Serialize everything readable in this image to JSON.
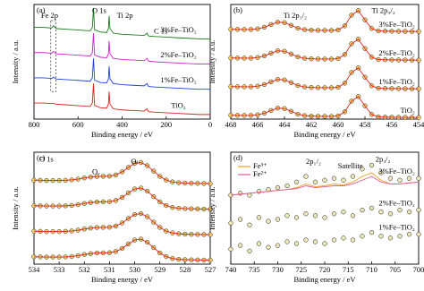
{
  "chart_data": [
    {
      "type": "line",
      "panel": "(a)",
      "xlabel": "Binding energy / eV",
      "ylabel": "Intensity / a.u.",
      "xlim": [
        800,
        0
      ],
      "xticks": [
        800,
        600,
        400,
        200,
        0
      ],
      "ylim": [
        0,
        100
      ],
      "markers": false,
      "lines": true,
      "annotations": [
        "Fe 2p",
        "O 1s",
        "Ti 2p",
        "C 1s"
      ],
      "x": [
        800,
        760,
        720,
        711,
        700,
        660,
        620,
        580,
        545,
        535,
        530,
        525,
        500,
        470,
        462,
        459,
        455,
        440,
        400,
        350,
        300,
        286,
        284,
        280,
        250,
        200,
        150,
        100,
        50,
        0
      ],
      "series": [
        {
          "name": "3%Fe–TiO₂",
          "color": "#1a7a1a",
          "values": [
            80,
            80,
            79.5,
            81.5,
            79,
            78.5,
            78,
            77.5,
            77,
            80,
            97,
            78,
            76,
            75.5,
            79,
            90,
            79,
            75,
            74,
            73.5,
            73,
            75,
            74,
            72.5,
            72,
            71.5,
            71,
            70.5,
            70,
            70
          ]
        },
        {
          "name": "2%Fe–TiO₂",
          "color": "#d020d0",
          "values": [
            58,
            58,
            57.5,
            59,
            57,
            56.5,
            56,
            55.5,
            55,
            58,
            75,
            56,
            54,
            53.5,
            57,
            68,
            57,
            53,
            52,
            51.5,
            51,
            53,
            52,
            50.5,
            50,
            49.5,
            49,
            48.5,
            48,
            48
          ]
        },
        {
          "name": "1%Fe–TiO₂",
          "color": "#2040e0",
          "values": [
            36,
            36,
            35.5,
            36.5,
            35,
            34.5,
            34,
            33.5,
            33,
            36,
            53,
            34,
            32,
            31.5,
            35,
            46,
            35,
            31,
            30,
            29.5,
            29,
            31,
            30,
            28.5,
            28,
            27.5,
            27,
            26.5,
            26,
            26
          ]
        },
        {
          "name": "TiO₂",
          "color": "#e02020",
          "values": [
            14,
            14,
            13.5,
            13.8,
            13,
            12.5,
            12,
            11.5,
            11,
            14,
            31,
            12,
            10,
            9.5,
            13,
            24,
            13,
            9,
            8,
            7.5,
            7,
            9,
            8,
            6.5,
            6,
            5.5,
            5,
            4.5,
            4,
            4
          ]
        }
      ]
    },
    {
      "type": "line",
      "panel": "(b)",
      "xlabel": "Binding energy / eV",
      "ylabel": "Intensity / a.u.",
      "xlim": [
        468,
        454
      ],
      "xticks": [
        468,
        466,
        464,
        462,
        460,
        458,
        456,
        454
      ],
      "ylim": [
        0,
        72
      ],
      "markers": true,
      "lines": true,
      "marker_fill": "#f3d36a",
      "annotations": [
        "Ti 2p₁/₂",
        "Ti 2p₃/₂"
      ],
      "x": [
        468,
        467.5,
        467,
        466.5,
        466,
        465.5,
        465,
        464.5,
        464,
        463.5,
        463,
        462.5,
        462,
        461.5,
        461,
        460.5,
        460,
        459.5,
        459,
        458.5,
        458,
        457.5,
        457,
        456.5,
        456,
        455.5,
        455,
        454.5,
        454
      ],
      "series": [
        {
          "name": "3%Fe–TiO₂",
          "color": "#e02020",
          "values": [
            56.4,
            56.35,
            56.3,
            56.3,
            56.7,
            57.7,
            59.4,
            60.9,
            60.6,
            58.9,
            57.1,
            56.2,
            55.9,
            55.75,
            55.7,
            55.7,
            56,
            58.6,
            65.3,
            68.2,
            62.3,
            56.9,
            55.4,
            55.25,
            55.2,
            55.15,
            55.1,
            55.05,
            55
          ]
        },
        {
          "name": "2%Fe–TiO₂",
          "color": "#e02020",
          "values": [
            38.4,
            38.35,
            38.3,
            38.3,
            38.7,
            39.7,
            41.4,
            42.9,
            42.6,
            40.9,
            39.1,
            38.2,
            37.9,
            37.75,
            37.7,
            37.7,
            38,
            40.6,
            47.3,
            50.2,
            44.3,
            38.9,
            37.4,
            37.25,
            37.2,
            37.15,
            37.1,
            37.05,
            37
          ]
        },
        {
          "name": "1%Fe–TiO₂",
          "color": "#e02020",
          "values": [
            20.4,
            20.35,
            20.3,
            20.3,
            20.7,
            21.7,
            23.4,
            24.9,
            24.6,
            22.9,
            21.1,
            20.2,
            19.9,
            19.75,
            19.7,
            19.7,
            20,
            22.6,
            29.3,
            32.2,
            26.3,
            20.9,
            19.4,
            19.25,
            19.2,
            19.15,
            19.1,
            19.05,
            19
          ]
        },
        {
          "name": "TiO₂",
          "color": "#e02020",
          "values": [
            2.4,
            2.35,
            2.3,
            2.3,
            2.7,
            3.7,
            5.4,
            6.9,
            6.6,
            4.9,
            3.1,
            2.2,
            1.9,
            1.75,
            1.7,
            1.7,
            2.0,
            4.6,
            11.3,
            14.2,
            8.3,
            2.9,
            1.4,
            1.25,
            1.2,
            1.15,
            1.1,
            1.05,
            1.0
          ]
        }
      ]
    },
    {
      "type": "line",
      "panel": "(c)",
      "xlabel": "Binding energy / eV",
      "ylabel": "Intensity / a.u.",
      "xlim": [
        534,
        527
      ],
      "xticks": [
        534,
        533,
        532,
        531,
        530,
        529,
        528,
        527
      ],
      "ylim": [
        -1,
        56
      ],
      "markers": true,
      "lines": true,
      "marker_fill": "#f3d36a",
      "annotations": [
        "O 1s",
        "Oᵥ",
        "Oₗ"
      ],
      "x": [
        534,
        533.75,
        533.5,
        533.25,
        533,
        532.75,
        532.5,
        532.25,
        532,
        531.75,
        531.5,
        531.25,
        531,
        530.75,
        530.5,
        530.25,
        530,
        529.75,
        529.5,
        529.25,
        529,
        528.75,
        528.5,
        528.25,
        528,
        527.75,
        527.5,
        527.25,
        527
      ],
      "series": [
        {
          "color": "#e02020",
          "values": [
            41.75,
            41.7,
            41.6,
            41.6,
            41.6,
            41.7,
            41.9,
            42.3,
            42.9,
            43.35,
            43.66,
            43.73,
            43.82,
            44.43,
            45.99,
            48.28,
            50.28,
            50.74,
            49.18,
            46.4,
            43.7,
            41.85,
            40.88,
            40.45,
            40.28,
            40.19,
            40.13,
            40.06,
            40
          ]
        },
        {
          "color": "#e02020",
          "values": [
            28.75,
            28.7,
            28.6,
            28.6,
            28.6,
            28.7,
            28.9,
            29.3,
            29.9,
            30.35,
            30.66,
            30.73,
            30.82,
            31.43,
            32.99,
            35.28,
            37.28,
            37.74,
            36.18,
            33.4,
            30.7,
            28.85,
            27.88,
            27.45,
            27.28,
            27.19,
            27.13,
            27.06,
            27
          ]
        },
        {
          "color": "#e02020",
          "values": [
            15.75,
            15.7,
            15.6,
            15.6,
            15.6,
            15.7,
            15.9,
            16.3,
            16.9,
            17.35,
            17.66,
            17.73,
            17.82,
            18.43,
            19.99,
            22.28,
            24.28,
            24.74,
            23.18,
            20.4,
            17.7,
            15.85,
            14.88,
            14.45,
            14.28,
            14.19,
            14.13,
            14.06,
            14
          ]
        },
        {
          "color": "#e02020",
          "values": [
            2.75,
            2.7,
            2.6,
            2.6,
            2.6,
            2.7,
            2.9,
            3.3,
            3.9,
            4.35,
            4.66,
            4.73,
            4.82,
            5.43,
            6.99,
            9.28,
            11.28,
            11.74,
            10.18,
            7.4,
            4.7,
            2.85,
            1.88,
            1.45,
            1.28,
            1.19,
            1.13,
            1.06,
            1.0
          ]
        }
      ]
    },
    {
      "type": "line",
      "panel": "(d)",
      "xlabel": "Binding energy / eV",
      "ylabel": "Intensity / a.u.",
      "xlim": [
        740,
        700
      ],
      "xticks": [
        740,
        735,
        730,
        725,
        720,
        715,
        710,
        705,
        700
      ],
      "ylim": [
        0,
        60
      ],
      "markers": true,
      "lines": false,
      "marker_fill": "#ece6b8",
      "annotations": [
        "2p₁/₂",
        "Satellite",
        "2p₃/₂"
      ],
      "x": [
        740,
        738,
        736,
        734,
        732,
        730,
        728,
        726,
        724,
        722,
        720,
        718,
        716,
        714,
        712,
        710,
        708,
        706,
        704,
        702,
        700
      ],
      "series": [
        {
          "name": "3%Fe–TiO₂",
          "color": "#000000",
          "values": [
            37,
            38,
            37,
            39,
            40,
            41,
            42,
            44,
            47,
            44,
            45,
            46,
            45,
            47,
            51,
            53,
            49,
            46,
            45,
            46,
            46
          ]
        },
        {
          "name": "2%Fe–TiO₂",
          "color": "#000000",
          "values": [
            22,
            24,
            21,
            25,
            23,
            24,
            26,
            25,
            27,
            26,
            25,
            27,
            28,
            26,
            29,
            30,
            28,
            27,
            29,
            28,
            29
          ]
        },
        {
          "name": "1%Fe–TiO₂",
          "color": "#000000",
          "values": [
            8,
            10,
            7,
            11,
            9,
            10,
            12,
            11,
            13,
            12,
            11,
            13,
            14,
            13,
            15,
            17,
            15,
            14,
            15,
            16,
            16
          ]
        }
      ],
      "fits": [
        {
          "name": "Fe³⁺",
          "color": "#f4a020",
          "values": [
            37,
            37.5,
            38,
            38.5,
            39,
            39.5,
            40,
            41,
            43,
            41.5,
            42,
            43,
            42.5,
            44,
            47,
            49,
            45,
            43,
            43,
            43.5,
            44
          ]
        },
        {
          "name": "Fe²⁺",
          "color": "#e05a9a",
          "values": [
            37,
            37.5,
            38,
            38.5,
            39,
            39.5,
            40,
            40.5,
            42,
            41,
            41.5,
            42,
            42,
            43,
            45,
            47,
            44,
            43,
            43,
            43.5,
            44
          ]
        }
      ]
    }
  ]
}
